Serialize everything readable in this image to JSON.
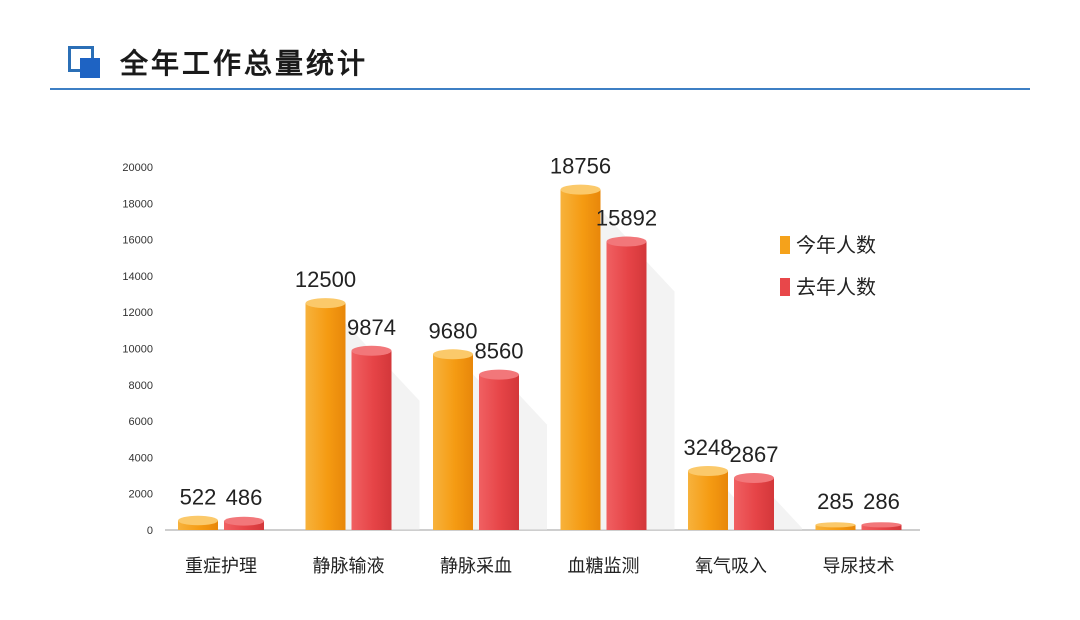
{
  "header": {
    "title": "全年工作总量统计",
    "accent": "#2b6fb6"
  },
  "chart_data": {
    "type": "bar",
    "title": "",
    "xlabel": "",
    "ylabel": "",
    "ylim": [
      0,
      20000
    ],
    "yticks": [
      0,
      2000,
      4000,
      6000,
      8000,
      10000,
      12000,
      14000,
      16000,
      18000,
      20000
    ],
    "grid": false,
    "legend_position": "right",
    "categories": [
      "重症护理",
      "静脉输液",
      "静脉采血",
      "血糖监测",
      "氧气吸入",
      "导尿技术"
    ],
    "series": [
      {
        "name": "今年人数",
        "color": "#f5a21b",
        "values": [
          522,
          12500,
          9680,
          18756,
          3248,
          285
        ]
      },
      {
        "name": "去年人数",
        "color": "#e8474a",
        "values": [
          486,
          9874,
          8560,
          15892,
          2867,
          286
        ]
      }
    ]
  }
}
